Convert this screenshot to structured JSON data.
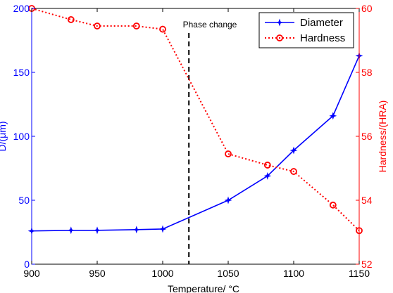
{
  "chart_data": {
    "type": "line",
    "title": "",
    "xlabel": "Temperature/   °C",
    "ylabel_left": "D/(μm)",
    "ylabel_right": "Hardness/(HRA)",
    "xlim": [
      900,
      1150
    ],
    "ylim_left": [
      0,
      200
    ],
    "ylim_right": [
      52,
      60
    ],
    "x_ticks": [
      "900",
      "950",
      "1000",
      "1050",
      "1100",
      "1150"
    ],
    "y_ticks_left": [
      "0",
      "50",
      "100",
      "150",
      "200"
    ],
    "y_ticks_right": [
      "52",
      "54",
      "56",
      "58",
      "60"
    ],
    "grid": false,
    "legend_position": "top-right",
    "series": [
      {
        "name": "Diameter",
        "axis": "left",
        "color": "#0000ff",
        "linestyle": "solid",
        "marker": "star",
        "x": [
          900,
          930,
          950,
          980,
          1000,
          1050,
          1080,
          1100,
          1130,
          1150
        ],
        "y": [
          26,
          26.5,
          26.5,
          27,
          27.5,
          50,
          69,
          89,
          116,
          163
        ]
      },
      {
        "name": "Hardness",
        "axis": "right",
        "color": "#ff0000",
        "linestyle": "dotted",
        "marker": "circle",
        "x": [
          900,
          930,
          950,
          980,
          1000,
          1050,
          1080,
          1100,
          1130,
          1150
        ],
        "y": [
          60,
          59.65,
          59.45,
          59.45,
          59.35,
          55.45,
          55.1,
          54.9,
          53.85,
          53.05
        ]
      }
    ],
    "annotations": [
      {
        "text": "Phase change",
        "x": 1020,
        "linestyle": "dashed",
        "color": "#000000"
      }
    ]
  }
}
